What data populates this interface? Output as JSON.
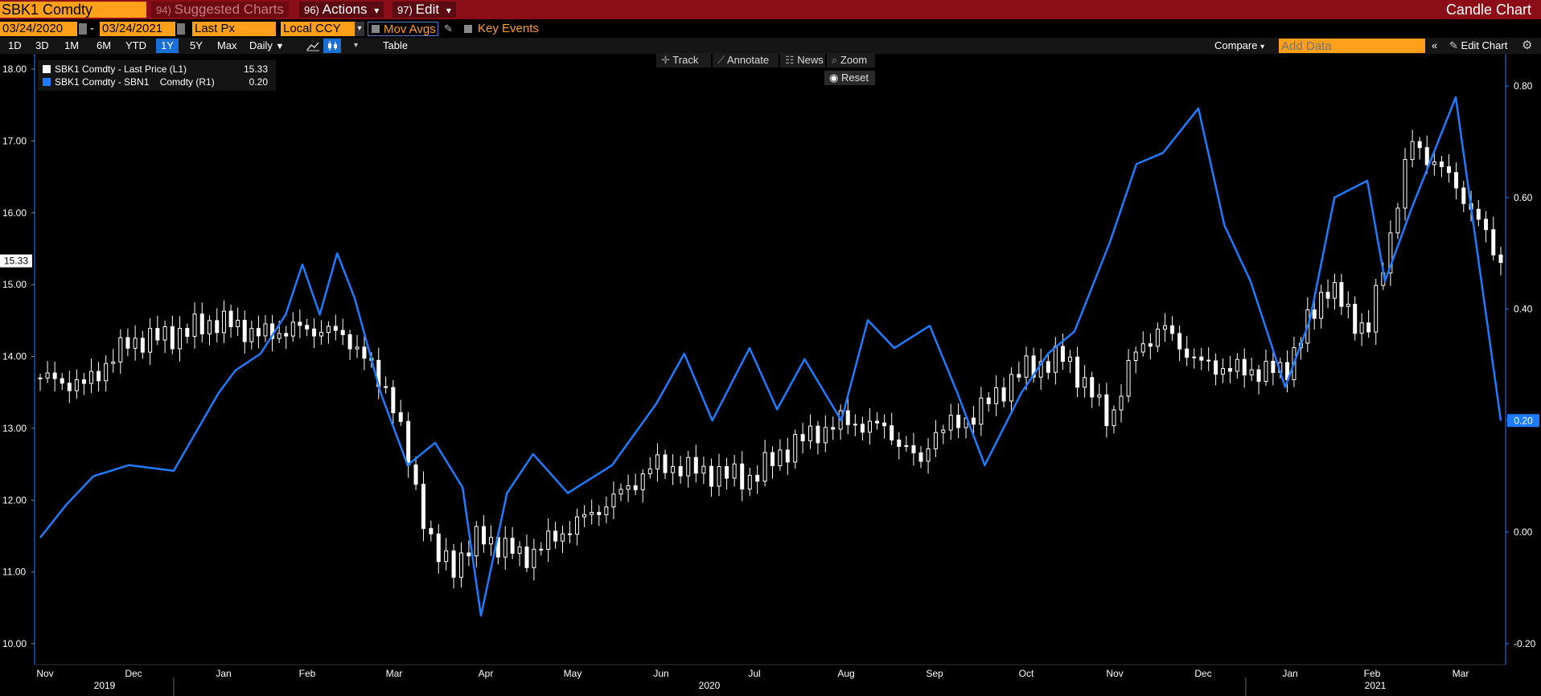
{
  "topbar": {
    "ticker": "SBK1 Comdty",
    "suggested": {
      "num": "94)",
      "label": "Suggested Charts"
    },
    "actions": {
      "num": "96)",
      "label": "Actions",
      "caret": "▾"
    },
    "edit": {
      "num": "97)",
      "label": "Edit",
      "caret": "▾"
    },
    "chart_type": "Candle Chart"
  },
  "controls": {
    "start_date": "03/24/2020",
    "dash": "-",
    "end_date": "03/24/2021",
    "field": "Last Px",
    "currency": "Local CCY",
    "mov_avgs": "Mov Avgs",
    "key_events": "Key Events"
  },
  "ranges": {
    "items": [
      "1D",
      "3D",
      "1M",
      "6M",
      "YTD",
      "1Y",
      "5Y",
      "Max"
    ],
    "active": "1Y",
    "frequency": "Daily",
    "table": "Table",
    "compare": "Compare",
    "add_data_placeholder": "Add Data",
    "edit_chart": "Edit Chart",
    "double_chevron": "«"
  },
  "toolbar": {
    "track": "Track",
    "annotate": "Annotate",
    "news": "News",
    "zoom": "Zoom",
    "reset": "Reset"
  },
  "last_price_tag": "15.33",
  "last_spread_tag": "0.20",
  "colors": {
    "accent_orange": "#ff9f1a",
    "header_red": "#8b0d17",
    "spread_blue": "#1f7bff",
    "candle": "#ffffff",
    "active_blue": "#1a6fd6"
  },
  "chart_data": {
    "type": "line",
    "left_axis": {
      "ticks": [
        10.0,
        11.0,
        12.0,
        13.0,
        14.0,
        15.0,
        16.0,
        17.0,
        18.0
      ],
      "tick_labels": [
        "10.00",
        "11.00",
        "12.00",
        "13.00",
        "14.00",
        "15.00",
        "16.00",
        "17.00",
        "18.00"
      ],
      "ylim": [
        9.8,
        18.2
      ]
    },
    "right_axis": {
      "ticks": [
        -0.2,
        0.0,
        0.2,
        0.4,
        0.6,
        0.8
      ],
      "tick_labels": [
        "-0.20",
        "0.00",
        "0.20",
        "0.40",
        "0.60",
        "0.80"
      ],
      "ylim": [
        -0.22,
        0.84
      ]
    },
    "x_months": [
      "Nov",
      "Dec",
      "Jan",
      "Feb",
      "Mar",
      "Apr",
      "May",
      "Jun",
      "Jul",
      "Aug",
      "Sep",
      "Oct",
      "Nov",
      "Dec",
      "Jan",
      "Feb",
      "Mar"
    ],
    "x_years": [
      "2019",
      "2020",
      "2021"
    ],
    "legend": [
      {
        "label": "SBK1 Comdty - Last Price (L1)",
        "value": "15.33",
        "color": "#ffffff"
      },
      {
        "label": "SBK1 Comdty - SBN1    Comdty (R1)",
        "value": "0.20",
        "color": "#1f7bff"
      }
    ],
    "series": [
      {
        "name": "SBK1 Comdty - Last Price (L1)",
        "style": "candle",
        "x": [
          0,
          0.5,
          1,
          1.5,
          2,
          2.5,
          3,
          3.5,
          4,
          4.5,
          4.7,
          5,
          5.5,
          6,
          6.5,
          7,
          7.5,
          8,
          8.5,
          9,
          9.5,
          9.9,
          10,
          10.5,
          11,
          11.5,
          12,
          12.3,
          12.6,
          13,
          13.5,
          14,
          14.5,
          15,
          15.5,
          16,
          16.5
        ],
        "values": [
          13.7,
          13.6,
          14.2,
          14.3,
          14.5,
          14.3,
          14.4,
          14.3,
          13.5,
          11.2,
          11.1,
          11.5,
          11.2,
          11.6,
          12.0,
          12.5,
          12.4,
          12.3,
          12.8,
          13.1,
          13.0,
          12.5,
          12.9,
          13.2,
          13.8,
          14.0,
          13.1,
          14.1,
          14.4,
          13.9,
          13.8,
          13.8,
          15.0,
          14.3,
          17.0,
          16.4,
          15.33
        ]
      },
      {
        "name": "SBK1 Comdty - SBN1    Comdty (R1)",
        "style": "line",
        "x": [
          0,
          0.3,
          0.6,
          1,
          1.5,
          2,
          2.2,
          2.5,
          2.8,
          3,
          3.2,
          3.4,
          3.6,
          3.9,
          4.2,
          4.5,
          4.8,
          5,
          5.3,
          5.6,
          6,
          6.5,
          7,
          7.3,
          7.6,
          8,
          8.3,
          8.6,
          9,
          9.3,
          9.6,
          10,
          10.3,
          10.6,
          11,
          11.3,
          11.6,
          12,
          12.3,
          12.6,
          13,
          13.3,
          13.6,
          14,
          14.3,
          14.6,
          15,
          15.2,
          15.5,
          16,
          16.5
        ],
        "values": [
          -0.01,
          0.05,
          0.1,
          0.12,
          0.11,
          0.25,
          0.29,
          0.32,
          0.39,
          0.48,
          0.39,
          0.5,
          0.42,
          0.25,
          0.12,
          0.16,
          0.08,
          -0.15,
          0.07,
          0.14,
          0.07,
          0.12,
          0.23,
          0.32,
          0.2,
          0.33,
          0.22,
          0.31,
          0.2,
          0.38,
          0.33,
          0.37,
          0.25,
          0.12,
          0.25,
          0.32,
          0.36,
          0.52,
          0.66,
          0.68,
          0.76,
          0.55,
          0.45,
          0.26,
          0.38,
          0.6,
          0.63,
          0.45,
          0.58,
          0.78,
          0.2
        ]
      }
    ]
  }
}
